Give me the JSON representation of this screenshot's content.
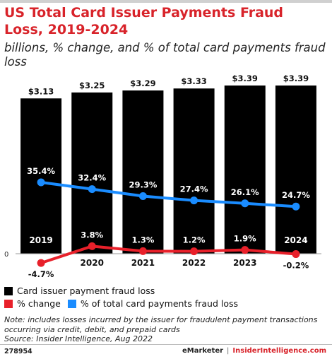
{
  "title": "US Total Card Issuer Payments Fraud Loss, 2019-2024",
  "subtitle": "billions, % change, and % of total card payments fraud loss",
  "chart_data": {
    "type": "bar",
    "categories": [
      "2019",
      "2020",
      "2021",
      "2022",
      "2023",
      "2024"
    ],
    "zero_label": "0",
    "series": [
      {
        "name": "Card issuer payment fraud loss",
        "type": "bar",
        "values": [
          3.13,
          3.25,
          3.29,
          3.33,
          3.39,
          3.39
        ],
        "labels": [
          "$3.13",
          "$3.25",
          "$3.29",
          "$3.33",
          "$3.39",
          "$3.39"
        ],
        "color": "#000000"
      },
      {
        "name": "% change",
        "type": "line",
        "values": [
          -4.7,
          3.8,
          1.3,
          1.2,
          1.9,
          -0.2
        ],
        "labels": [
          "-4.7%",
          "3.8%",
          "1.3%",
          "1.2%",
          "1.9%",
          "-0.2%"
        ],
        "color": "#e8202a"
      },
      {
        "name": "% of total card payments fraud loss",
        "type": "line",
        "values": [
          35.4,
          32.4,
          29.3,
          27.4,
          26.1,
          24.7
        ],
        "labels": [
          "35.4%",
          "32.4%",
          "29.3%",
          "27.4%",
          "26.1%",
          "24.7%"
        ],
        "color": "#1a8cff"
      }
    ]
  },
  "legend": {
    "bar": "Card issuer payment fraud loss",
    "change": "% change",
    "share": "% of total card payments fraud loss"
  },
  "note": "Note: includes losses incurred by the issuer for fraudulent payment transactions occurring via credit, debit, and prepaid cards",
  "source": "Source: Insider Intelligence, Aug 2022",
  "footer": {
    "id": "278954",
    "brand_emarketer": "eMarketer",
    "separator": "|",
    "brand_ii": "InsiderIntelligence.com"
  },
  "colors": {
    "accent": "#d8232a",
    "bar": "#000000",
    "change_line": "#e8202a",
    "share_line": "#1a8cff"
  }
}
